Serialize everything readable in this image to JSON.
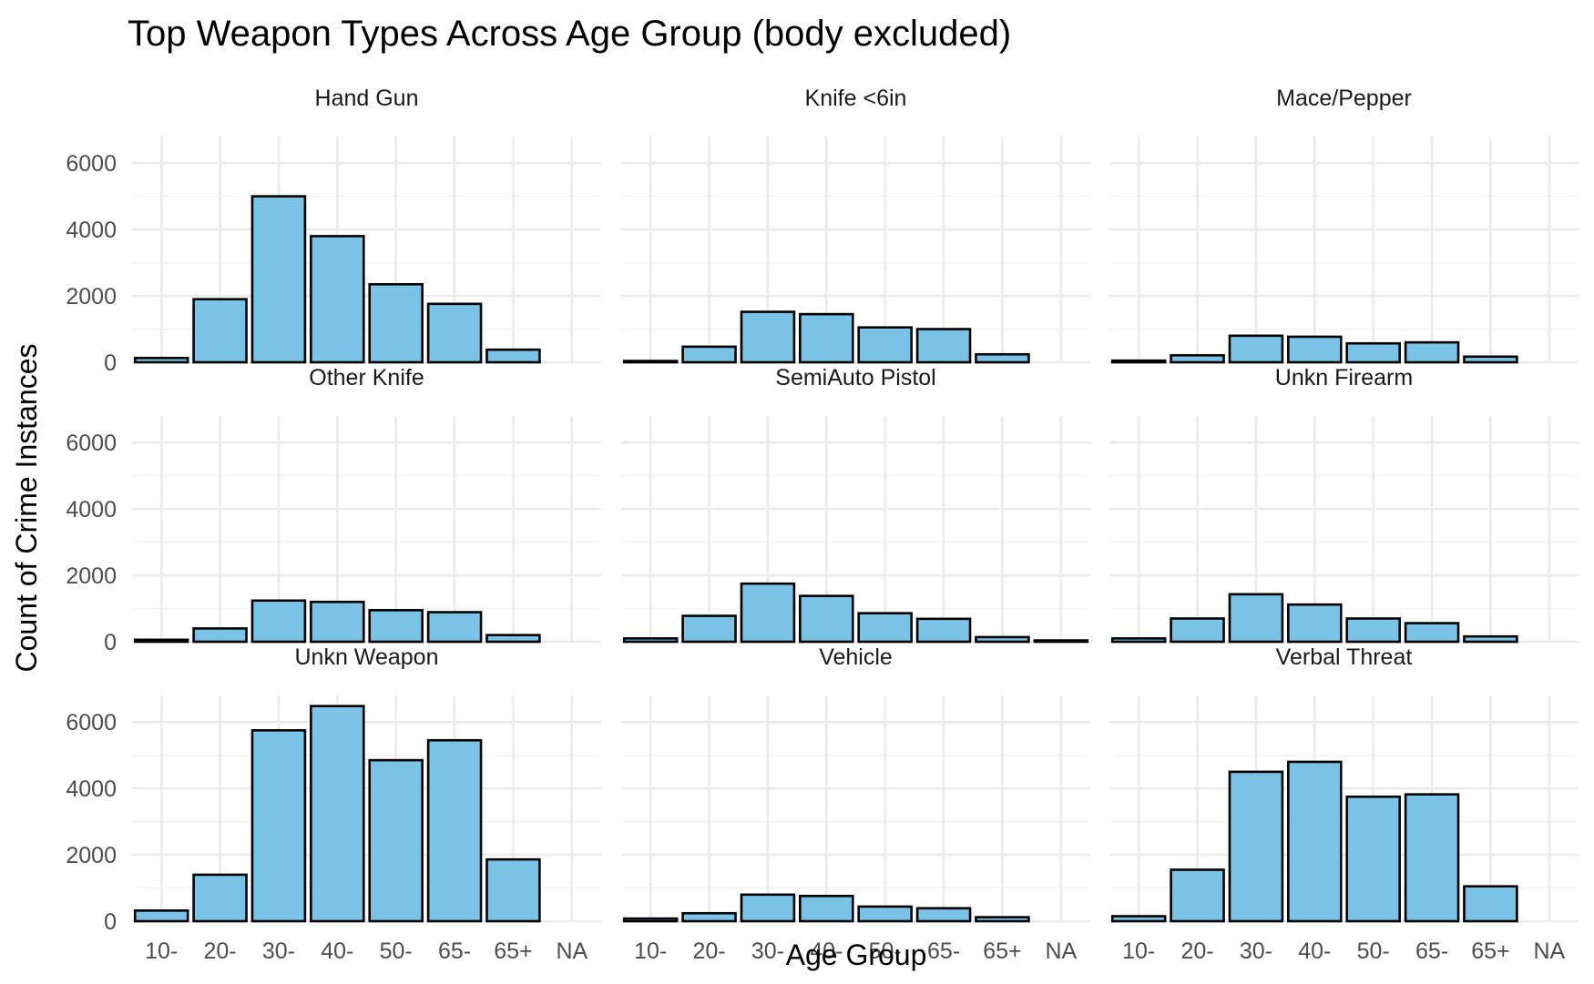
{
  "chart_data": {
    "type": "bar",
    "title": "Top Weapon Types Across Age Group (body excluded)",
    "xlabel": "Age Group",
    "ylabel": "Count of Crime Instances",
    "categories": [
      "10-",
      "20-",
      "30-",
      "40-",
      "50-",
      "65-",
      "65+",
      "NA"
    ],
    "y_ticks": [
      0,
      2000,
      4000,
      6000
    ],
    "y_tick_labels": [
      "0",
      "2000",
      "4000",
      "6000"
    ],
    "ylim": [
      0,
      6800
    ],
    "grid": true,
    "facet_layout": {
      "rows": 3,
      "cols": 3
    },
    "bar_color": "#7AC3E6",
    "bar_outline": "#000000",
    "panels": [
      {
        "name": "Hand Gun",
        "values": [
          130,
          1900,
          5000,
          3800,
          2350,
          1760,
          380,
          null
        ]
      },
      {
        "name": "Knife <6in",
        "values": [
          40,
          470,
          1520,
          1450,
          1050,
          1000,
          240,
          null
        ]
      },
      {
        "name": "Mace/Pepper",
        "values": [
          50,
          210,
          800,
          770,
          570,
          600,
          170,
          null
        ]
      },
      {
        "name": "Other Knife",
        "values": [
          60,
          400,
          1240,
          1200,
          950,
          890,
          200,
          null
        ]
      },
      {
        "name": "SemiAuto Pistol",
        "values": [
          100,
          780,
          1750,
          1380,
          860,
          690,
          140,
          40
        ]
      },
      {
        "name": "Unkn Firearm",
        "values": [
          100,
          700,
          1430,
          1120,
          700,
          560,
          160,
          null
        ]
      },
      {
        "name": "Unkn Weapon",
        "values": [
          320,
          1400,
          5750,
          6480,
          4850,
          5450,
          1860,
          null
        ]
      },
      {
        "name": "Vehicle",
        "values": [
          80,
          240,
          800,
          760,
          440,
          390,
          120,
          null
        ]
      },
      {
        "name": "Verbal Threat",
        "values": [
          150,
          1550,
          4500,
          4800,
          3750,
          3820,
          1050,
          null
        ]
      }
    ]
  }
}
